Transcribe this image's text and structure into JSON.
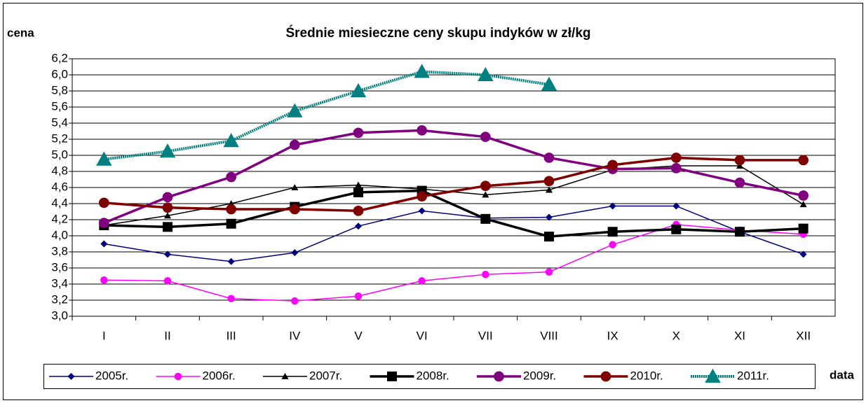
{
  "chart_data": {
    "type": "line",
    "title": "Średnie miesieczne ceny skupu indyków w zł/kg",
    "y_label": "cena",
    "x_label": "data",
    "categories": [
      "I",
      "II",
      "III",
      "IV",
      "V",
      "VI",
      "VII",
      "VIII",
      "IX",
      "X",
      "XI",
      "XII"
    ],
    "ylim": [
      3.0,
      6.2
    ],
    "yticks": [
      {
        "value": 3.0,
        "label": "3,0"
      },
      {
        "value": 3.2,
        "label": "3,2"
      },
      {
        "value": 3.4,
        "label": "3,4"
      },
      {
        "value": 3.6,
        "label": "3,6"
      },
      {
        "value": 3.8,
        "label": "3,8"
      },
      {
        "value": 4.0,
        "label": "4,0"
      },
      {
        "value": 4.2,
        "label": "4,2"
      },
      {
        "value": 4.4,
        "label": "4,4"
      },
      {
        "value": 4.6,
        "label": "4,6"
      },
      {
        "value": 4.8,
        "label": "4,8"
      },
      {
        "value": 5.0,
        "label": "5,0"
      },
      {
        "value": 5.2,
        "label": "5,2"
      },
      {
        "value": 5.4,
        "label": "5,4"
      },
      {
        "value": 5.6,
        "label": "5,6"
      },
      {
        "value": 5.8,
        "label": "5,8"
      },
      {
        "value": 6.0,
        "label": "6,0"
      },
      {
        "value": 6.2,
        "label": "6,2"
      }
    ],
    "grid": true,
    "legend": "bottom",
    "series": [
      {
        "name": "2005r.",
        "color": "#000080",
        "marker": "diamond",
        "width": 1.5,
        "values": [
          3.9,
          3.77,
          3.68,
          3.79,
          4.12,
          4.31,
          4.22,
          4.23,
          4.37,
          4.37,
          4.05,
          3.77
        ]
      },
      {
        "name": "2006r.",
        "color": "#ff00ff",
        "marker": "circle",
        "width": 1.5,
        "values": [
          3.45,
          3.44,
          3.22,
          3.19,
          3.25,
          3.44,
          3.52,
          3.55,
          3.89,
          4.14,
          4.07,
          4.02
        ]
      },
      {
        "name": "2007r.",
        "color": "#000000",
        "marker": "triangle",
        "width": 1.5,
        "values": [
          4.13,
          4.25,
          4.4,
          4.6,
          4.63,
          4.58,
          4.51,
          4.57,
          4.82,
          4.87,
          4.87,
          4.39
        ]
      },
      {
        "name": "2008r.",
        "color": "#000000",
        "marker": "square",
        "width": 3.5,
        "values": [
          4.13,
          4.11,
          4.15,
          4.36,
          4.54,
          4.56,
          4.21,
          3.99,
          4.05,
          4.08,
          4.05,
          4.09
        ]
      },
      {
        "name": "2009r.",
        "color": "#800080",
        "marker": "circle",
        "width": 3.5,
        "values": [
          4.16,
          4.48,
          4.73,
          5.13,
          5.28,
          5.31,
          5.23,
          4.97,
          4.83,
          4.84,
          4.66,
          4.5
        ]
      },
      {
        "name": "2010r.",
        "color": "#800000",
        "marker": "circle",
        "width": 3.5,
        "values": [
          4.41,
          4.35,
          4.33,
          4.33,
          4.31,
          4.49,
          4.62,
          4.68,
          4.88,
          4.97,
          4.94,
          4.94
        ]
      },
      {
        "name": "2011r.",
        "color": "#008080",
        "marker": "triangle",
        "width": 4,
        "dashed": true,
        "values": [
          4.95,
          5.05,
          5.18,
          5.55,
          5.8,
          6.04,
          6.0,
          5.88,
          null,
          null,
          null,
          null
        ]
      }
    ]
  }
}
